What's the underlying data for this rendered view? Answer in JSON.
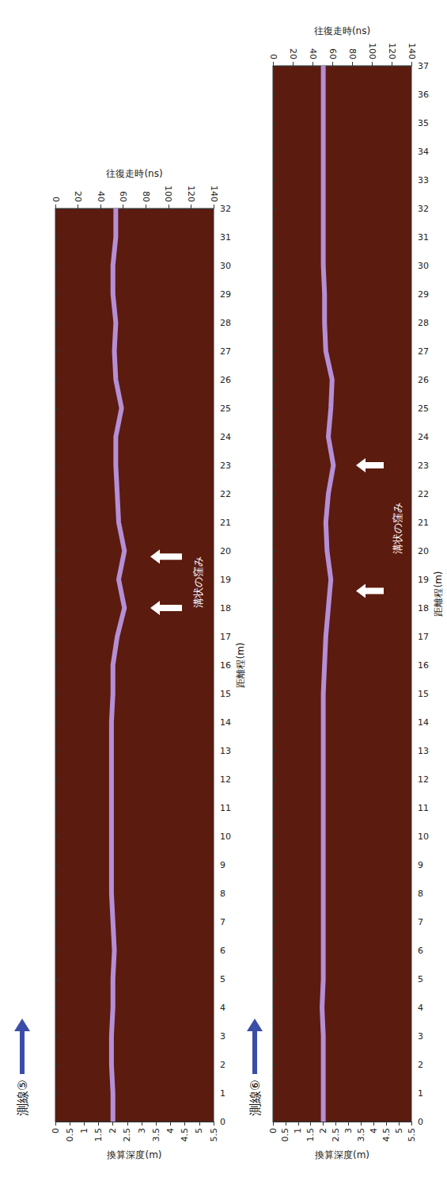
{
  "chart_data": [
    {
      "type": "line",
      "title": "測線⑤",
      "color": "#b58fd6",
      "grid": false,
      "x_label": "距離程(m)",
      "y_label": "換算深度(m)",
      "y2_label": "往復走時(ns)",
      "x": [
        0,
        1,
        2,
        3,
        4,
        5,
        6,
        7,
        8,
        9,
        10,
        11,
        12,
        13,
        14,
        15,
        16,
        17,
        18,
        19,
        20,
        21,
        22,
        23,
        24,
        25,
        26,
        27,
        28,
        29,
        30,
        31,
        32
      ],
      "values": [
        2.0,
        2.0,
        1.95,
        1.95,
        2.0,
        2.0,
        2.05,
        2.0,
        1.95,
        1.95,
        1.95,
        1.95,
        1.95,
        1.95,
        1.95,
        2.0,
        2.0,
        2.15,
        2.4,
        2.2,
        2.4,
        2.2,
        2.15,
        2.1,
        2.1,
        2.3,
        2.1,
        2.05,
        2.1,
        2.0,
        2.0,
        2.1,
        2.1
      ],
      "xlim": [
        0,
        32
      ],
      "xticks": [
        0,
        1,
        2,
        3,
        4,
        5,
        6,
        7,
        8,
        9,
        10,
        11,
        12,
        13,
        14,
        15,
        16,
        17,
        18,
        19,
        20,
        21,
        22,
        23,
        24,
        25,
        26,
        27,
        28,
        29,
        30,
        31,
        32
      ],
      "ylim": [
        0,
        5.5
      ],
      "yticks": [
        0,
        0.5,
        1,
        1.5,
        2,
        2.5,
        3,
        3.5,
        4,
        4.5,
        5,
        5.5
      ],
      "y2lim": [
        0,
        140
      ],
      "y2ticks": [
        0,
        20,
        40,
        60,
        80,
        100,
        120,
        140
      ],
      "annotations": [
        {
          "text": "溝状の窪み",
          "x": [
            18,
            19.8
          ]
        }
      ]
    },
    {
      "type": "line",
      "title": "測線⑥",
      "color": "#b58fd6",
      "grid": false,
      "x_label": "距離程(m)",
      "y_label": "換算深度(m)",
      "y2_label": "往復走時(ns)",
      "x": [
        0,
        1,
        2,
        3,
        4,
        5,
        6,
        7,
        8,
        9,
        10,
        11,
        12,
        13,
        14,
        15,
        16,
        17,
        18,
        19,
        20,
        21,
        22,
        23,
        24,
        25,
        26,
        27,
        28,
        29,
        30,
        31,
        32,
        33,
        34,
        35,
        36,
        37
      ],
      "values": [
        2.0,
        2.0,
        2.0,
        2.0,
        1.95,
        2.0,
        2.0,
        2.0,
        2.0,
        2.0,
        2.0,
        2.0,
        2.0,
        2.0,
        2.0,
        2.0,
        2.05,
        2.1,
        2.2,
        2.3,
        2.15,
        2.1,
        2.2,
        2.4,
        2.2,
        2.3,
        2.35,
        2.1,
        2.05,
        2.05,
        2.0,
        2.0,
        2.0,
        2.0,
        2.0,
        2.0,
        2.0,
        2.0
      ],
      "xlim": [
        0,
        37
      ],
      "xticks": [
        0,
        1,
        2,
        3,
        4,
        5,
        6,
        7,
        8,
        9,
        10,
        11,
        12,
        13,
        14,
        15,
        16,
        17,
        18,
        19,
        20,
        21,
        22,
        23,
        24,
        25,
        26,
        27,
        28,
        29,
        30,
        31,
        32,
        33,
        34,
        35,
        36,
        37
      ],
      "ylim": [
        0,
        5.5
      ],
      "yticks": [
        0,
        0.5,
        1,
        1.5,
        2,
        2.5,
        3,
        3.5,
        4,
        4.5,
        5,
        5.5
      ],
      "y2lim": [
        0,
        140
      ],
      "y2ticks": [
        0,
        20,
        40,
        60,
        80,
        100,
        120,
        140
      ],
      "annotations": [
        {
          "text": "溝状の窪み",
          "x": [
            18.6,
            23
          ]
        }
      ]
    }
  ]
}
